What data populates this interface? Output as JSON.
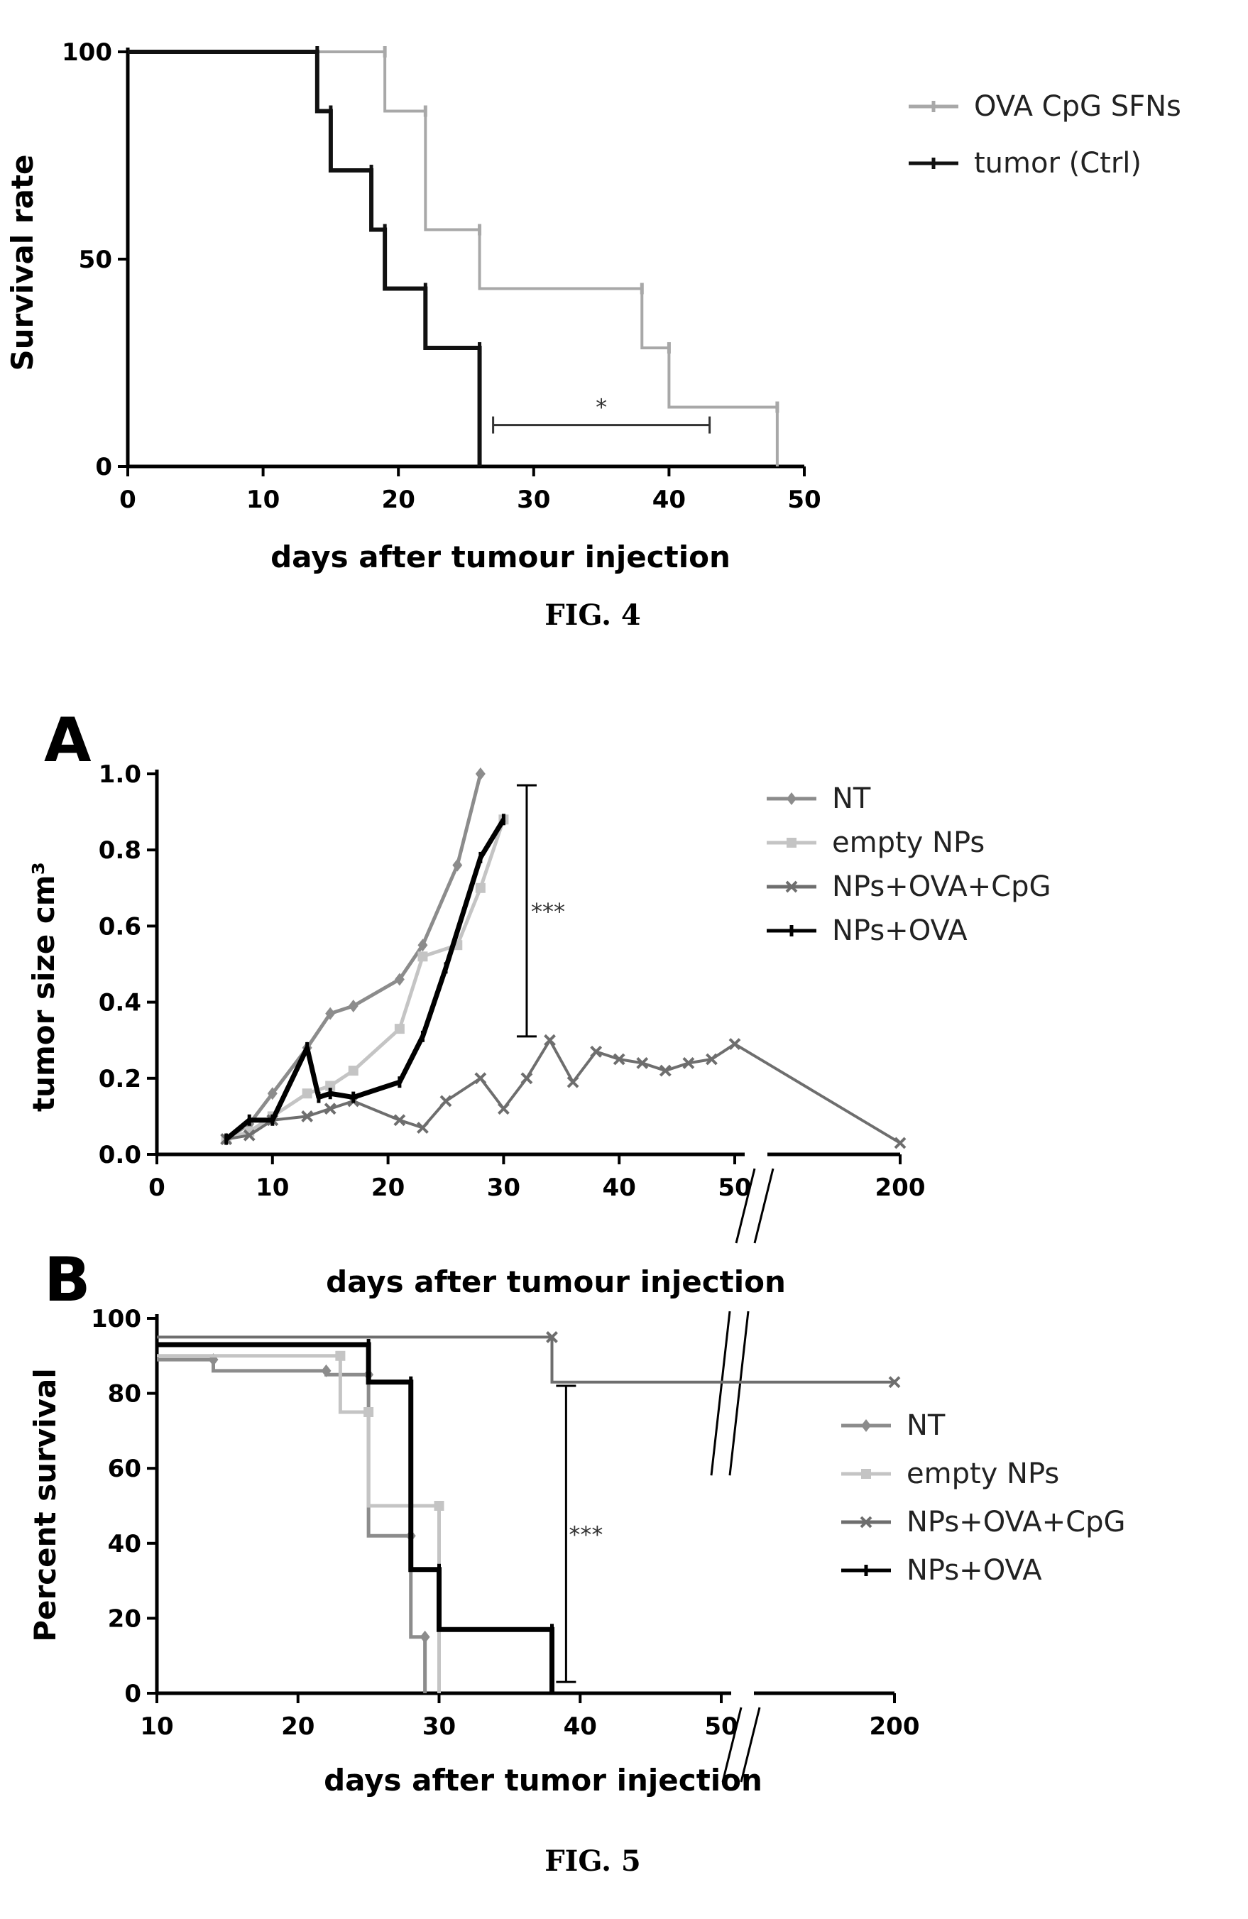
{
  "chart_data": [
    {
      "type": "line",
      "variant": "survival-step",
      "figure_label": "FIG. 4",
      "title": "",
      "xlabel": "days after tumour injection",
      "ylabel": "Survival rate",
      "xlim": [
        0,
        50
      ],
      "ylim": [
        0,
        100
      ],
      "xticks": [
        "0",
        "10",
        "20",
        "30",
        "40",
        "50"
      ],
      "yticks": [
        "0",
        "50",
        "100"
      ],
      "grid": false,
      "legend_position": "top-right",
      "series": [
        {
          "name": "OVA CpG SFNs",
          "color": "#a8a8a8",
          "x": [
            0,
            19,
            22,
            26,
            38,
            40,
            48
          ],
          "y": [
            100,
            85.7,
            57.1,
            42.9,
            28.6,
            14.3,
            0
          ]
        },
        {
          "name": "tumor (Ctrl)",
          "color": "#111111",
          "x": [
            0,
            14,
            15,
            18,
            19,
            22,
            26
          ],
          "y": [
            100,
            85.7,
            71.4,
            57.1,
            42.9,
            28.6,
            0
          ]
        }
      ],
      "annotations": [
        {
          "text": "*",
          "x_range": [
            27,
            43
          ],
          "y": 10
        }
      ]
    },
    {
      "type": "line",
      "variant": "growth",
      "panel": "A",
      "title": "",
      "xlabel": "days after tumour injection",
      "ylabel": "tumor size cm³",
      "x_axis_break": "between 50 and 200",
      "xticks": [
        "0",
        "10",
        "20",
        "30",
        "40",
        "50",
        "200"
      ],
      "yticks": [
        "0.0",
        "0.2",
        "0.4",
        "0.6",
        "0.8",
        "1.0"
      ],
      "ylim": [
        0,
        1.0
      ],
      "grid": false,
      "legend_position": "top-right",
      "series": [
        {
          "name": "NT",
          "color": "#8c8c8c",
          "x": [
            6,
            8,
            10,
            13,
            15,
            17,
            21,
            23,
            26,
            28
          ],
          "y": [
            0.04,
            0.08,
            0.16,
            0.28,
            0.37,
            0.39,
            0.46,
            0.55,
            0.76,
            1.0
          ]
        },
        {
          "name": "empty NPs",
          "color": "#c4c4c4",
          "x": [
            6,
            8,
            10,
            13,
            15,
            17,
            21,
            23,
            26,
            28,
            30
          ],
          "y": [
            0.04,
            0.06,
            0.1,
            0.16,
            0.18,
            0.22,
            0.33,
            0.52,
            0.55,
            0.7,
            0.88
          ]
        },
        {
          "name": "NPs+OVA+CpG",
          "color": "#6e6e6e",
          "x": [
            6,
            8,
            10,
            13,
            15,
            17,
            21,
            23,
            25,
            28,
            30,
            32,
            34,
            36,
            38,
            40,
            42,
            44,
            46,
            48,
            50,
            200
          ],
          "y": [
            0.04,
            0.05,
            0.09,
            0.1,
            0.12,
            0.14,
            0.09,
            0.07,
            0.14,
            0.2,
            0.12,
            0.2,
            0.3,
            0.19,
            0.27,
            0.25,
            0.24,
            0.22,
            0.24,
            0.25,
            0.29,
            0.03
          ]
        },
        {
          "name": "NPs+OVA",
          "color": "#000000",
          "x": [
            6,
            8,
            10,
            13,
            14,
            15,
            17,
            21,
            23,
            25,
            28,
            30
          ],
          "y": [
            0.04,
            0.09,
            0.09,
            0.28,
            0.15,
            0.16,
            0.15,
            0.19,
            0.31,
            0.49,
            0.78,
            0.88
          ]
        }
      ],
      "annotations": [
        {
          "text": "***",
          "x": 32,
          "y_range": [
            0.31,
            0.97
          ]
        }
      ]
    },
    {
      "type": "line",
      "variant": "survival-step",
      "panel": "B",
      "figure_label": "FIG. 5",
      "title": "",
      "xlabel": "days after tumor injection",
      "ylabel": "Percent survival",
      "x_axis_break": "between 50 and 200",
      "xticks": [
        "10",
        "20",
        "30",
        "40",
        "50",
        "200"
      ],
      "yticks": [
        "0",
        "20",
        "40",
        "60",
        "80",
        "100"
      ],
      "ylim": [
        0,
        100
      ],
      "grid": false,
      "legend_position": "right",
      "series": [
        {
          "name": "NT",
          "color": "#8c8c8c",
          "x": [
            10,
            14,
            22,
            25,
            28,
            29
          ],
          "y": [
            89,
            86,
            85,
            42,
            15,
            0
          ]
        },
        {
          "name": "empty NPs",
          "color": "#c4c4c4",
          "x": [
            10,
            23,
            25,
            30
          ],
          "y": [
            90,
            75,
            50,
            0
          ]
        },
        {
          "name": "NPs+OVA+CpG",
          "color": "#6e6e6e",
          "x": [
            10,
            38,
            200
          ],
          "y": [
            95,
            83,
            83
          ]
        },
        {
          "name": "NPs+OVA",
          "color": "#000000",
          "x": [
            10,
            25,
            28,
            30,
            38
          ],
          "y": [
            93,
            83,
            33,
            17,
            0
          ]
        }
      ],
      "annotations": [
        {
          "text": "***",
          "x": 39,
          "y_range": [
            3,
            82
          ]
        }
      ]
    }
  ]
}
